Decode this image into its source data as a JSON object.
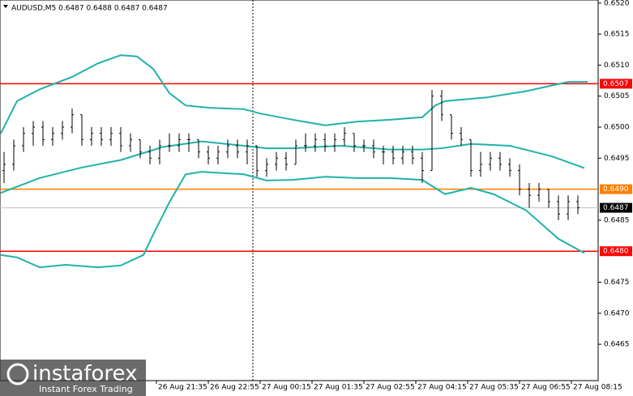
{
  "chart_data": {
    "type": "ohlc",
    "title": "AUDUSD,M5  0.6487 0.6488 0.6487 0.6487",
    "ylim": [
      0.64594,
      0.65205
    ],
    "xlim": [
      0,
      184
    ],
    "bar_color": "#000000",
    "yticks": [
      {
        "value": 0.652,
        "label": "0.6520"
      },
      {
        "value": 0.6515,
        "label": "0.6515"
      },
      {
        "value": 0.651,
        "label": "0.6510"
      },
      {
        "value": 0.6505,
        "label": "0.6505"
      },
      {
        "value": 0.65,
        "label": "0.6500"
      },
      {
        "value": 0.6495,
        "label": "0.6495"
      },
      {
        "value": 0.6485,
        "label": "0.6485"
      },
      {
        "value": 0.6475,
        "label": "0.6475"
      },
      {
        "value": 0.647,
        "label": "0.6470"
      },
      {
        "value": 0.6465,
        "label": "0.6465"
      }
    ],
    "xticks": [
      {
        "value": 48,
        "label": "26 Aug 21:35"
      },
      {
        "value": 64,
        "label": "26 Aug 22:55"
      },
      {
        "value": 80,
        "label": "27 Aug 00:15"
      },
      {
        "value": 96,
        "label": "27 Aug 01:35"
      },
      {
        "value": 112,
        "label": "27 Aug 02:55"
      },
      {
        "value": 128,
        "label": "27 Aug 04:15"
      },
      {
        "value": 144,
        "label": "27 Aug 05:35"
      },
      {
        "value": 160,
        "label": "27 Aug 06:55"
      },
      {
        "value": 176,
        "label": "27 Aug 08:15"
      }
    ],
    "x": [
      1,
      4,
      7,
      10,
      13,
      16,
      19,
      22,
      25,
      28,
      31,
      34,
      37,
      40,
      43,
      46,
      49,
      52,
      55,
      58,
      61,
      64,
      67,
      70,
      73,
      76,
      79,
      82,
      85,
      88,
      91,
      94,
      97,
      100,
      103,
      106,
      109,
      112,
      115,
      118,
      121,
      124,
      127,
      130,
      133,
      136,
      139,
      142,
      145,
      148,
      151,
      154,
      157,
      160,
      163,
      166,
      169,
      172,
      175,
      178
    ],
    "ohlc": [
      [
        0.6493,
        0.6496,
        0.6491,
        0.6494
      ],
      [
        0.6494,
        0.6498,
        0.6493,
        0.6497
      ],
      [
        0.6497,
        0.65,
        0.6496,
        0.6499
      ],
      [
        0.6499,
        0.6501,
        0.6497,
        0.65
      ],
      [
        0.65,
        0.6501,
        0.6497,
        0.6498
      ],
      [
        0.6498,
        0.65,
        0.6497,
        0.6499
      ],
      [
        0.6499,
        0.6501,
        0.6498,
        0.65
      ],
      [
        0.65,
        0.6503,
        0.6499,
        0.6502
      ],
      [
        0.6502,
        0.6502,
        0.6497,
        0.6498
      ],
      [
        0.6498,
        0.65,
        0.6497,
        0.6499
      ],
      [
        0.6499,
        0.65,
        0.6497,
        0.6498
      ],
      [
        0.6498,
        0.65,
        0.6497,
        0.6499
      ],
      [
        0.6499,
        0.65,
        0.6496,
        0.6497
      ],
      [
        0.6497,
        0.6499,
        0.6496,
        0.6498
      ],
      [
        0.6498,
        0.6498,
        0.6495,
        0.6496
      ],
      [
        0.6496,
        0.6497,
        0.6494,
        0.6495
      ],
      [
        0.6495,
        0.6498,
        0.6494,
        0.6497
      ],
      [
        0.6497,
        0.6499,
        0.6496,
        0.6497
      ],
      [
        0.6497,
        0.6499,
        0.6496,
        0.6498
      ],
      [
        0.6498,
        0.6499,
        0.6496,
        0.6498
      ],
      [
        0.6498,
        0.6498,
        0.6495,
        0.6496
      ],
      [
        0.6496,
        0.6497,
        0.6494,
        0.6495
      ],
      [
        0.6495,
        0.6497,
        0.6494,
        0.6496
      ],
      [
        0.6496,
        0.6498,
        0.6495,
        0.6497
      ],
      [
        0.6497,
        0.6498,
        0.6495,
        0.6496
      ],
      [
        0.6496,
        0.6498,
        0.6494,
        0.6497
      ],
      [
        0.6497,
        0.6497,
        0.6492,
        0.6493
      ],
      [
        0.6493,
        0.6495,
        0.6492,
        0.6494
      ],
      [
        0.6494,
        0.6496,
        0.6493,
        0.6495
      ],
      [
        0.6495,
        0.6496,
        0.6493,
        0.6494
      ],
      [
        0.6494,
        0.6498,
        0.6494,
        0.6497
      ],
      [
        0.6497,
        0.6499,
        0.6496,
        0.6497
      ],
      [
        0.6497,
        0.6499,
        0.6496,
        0.6498
      ],
      [
        0.6498,
        0.6499,
        0.6496,
        0.6497
      ],
      [
        0.6497,
        0.6499,
        0.6496,
        0.6498
      ],
      [
        0.6498,
        0.65,
        0.6497,
        0.6499
      ],
      [
        0.6499,
        0.6499,
        0.6496,
        0.6497
      ],
      [
        0.6497,
        0.6498,
        0.6496,
        0.6497
      ],
      [
        0.6497,
        0.6498,
        0.6495,
        0.6496
      ],
      [
        0.6496,
        0.6497,
        0.6494,
        0.6496
      ],
      [
        0.6496,
        0.6497,
        0.6494,
        0.6495
      ],
      [
        0.6495,
        0.6497,
        0.6494,
        0.6496
      ],
      [
        0.6496,
        0.6497,
        0.6494,
        0.6495
      ],
      [
        0.6495,
        0.6496,
        0.6491,
        0.6493
      ],
      [
        0.6493,
        0.6506,
        0.6493,
        0.6505
      ],
      [
        0.6505,
        0.6506,
        0.6501,
        0.6502
      ],
      [
        0.6502,
        0.6502,
        0.6498,
        0.6499
      ],
      [
        0.6499,
        0.65,
        0.6497,
        0.6498
      ],
      [
        0.6498,
        0.6498,
        0.6492,
        0.6493
      ],
      [
        0.6493,
        0.6496,
        0.6492,
        0.6494
      ],
      [
        0.6494,
        0.6496,
        0.6493,
        0.6495
      ],
      [
        0.6495,
        0.6496,
        0.6493,
        0.6494
      ],
      [
        0.6494,
        0.6495,
        0.6492,
        0.6493
      ],
      [
        0.6493,
        0.6494,
        0.6489,
        0.649
      ],
      [
        0.649,
        0.6491,
        0.6487,
        0.6489
      ],
      [
        0.6489,
        0.6491,
        0.6488,
        0.649
      ],
      [
        0.649,
        0.649,
        0.6487,
        0.6488
      ],
      [
        0.6488,
        0.6489,
        0.6485,
        0.6486
      ],
      [
        0.6486,
        0.6489,
        0.6485,
        0.6488
      ],
      [
        0.6488,
        0.6489,
        0.6486,
        0.6487
      ]
    ],
    "bands": [
      {
        "color": "#20b2aa",
        "x": [
          0,
          5,
          12,
          22,
          30,
          37,
          42,
          47,
          52,
          57,
          65,
          75,
          80,
          90,
          100,
          110,
          120,
          130,
          134,
          137,
          150,
          162,
          175,
          181
        ],
        "values": [
          0.6499,
          0.65042,
          0.65061,
          0.65081,
          0.65103,
          0.65116,
          0.65114,
          0.65094,
          0.65055,
          0.65035,
          0.65031,
          0.65029,
          0.65022,
          0.65012,
          0.65003,
          0.65009,
          0.65012,
          0.65016,
          0.65035,
          0.65042,
          0.65048,
          0.65058,
          0.65073,
          0.65073
        ]
      },
      {
        "color": "#20b2aa",
        "x": [
          0,
          12,
          25,
          37,
          50,
          62,
          75,
          82,
          90,
          105,
          120,
          130,
          136,
          145,
          157,
          170,
          180
        ],
        "values": [
          0.64894,
          0.64918,
          0.64935,
          0.64947,
          0.64968,
          0.64977,
          0.6497,
          0.64966,
          0.64966,
          0.6497,
          0.64964,
          0.64964,
          0.64966,
          0.64973,
          0.6497,
          0.64953,
          0.64934
        ]
      },
      {
        "color": "#20b2aa",
        "x": [
          0,
          5,
          12,
          20,
          30,
          37,
          44,
          47,
          52,
          57,
          62,
          75,
          82,
          90,
          100,
          110,
          120,
          130,
          137,
          145,
          152,
          162,
          172,
          180
        ],
        "values": [
          0.64794,
          0.6479,
          0.64774,
          0.64778,
          0.64774,
          0.64777,
          0.64794,
          0.64827,
          0.64879,
          0.64924,
          0.64928,
          0.64924,
          0.64914,
          0.64915,
          0.6492,
          0.64918,
          0.64918,
          0.64915,
          0.64892,
          0.64902,
          0.64892,
          0.64866,
          0.6482,
          0.64797
        ]
      }
    ],
    "levels": [
      {
        "value": 0.6507,
        "label": "0.6507",
        "color": "#ff0000"
      },
      {
        "value": 0.649,
        "label": "0.6490",
        "color": "#ff7f00"
      },
      {
        "value": 0.648,
        "label": "0.6480",
        "color": "#ff0000"
      }
    ],
    "current_price": {
      "value": 0.6487,
      "label": "0.6487",
      "color": "#c0c0c0"
    },
    "watermark": {
      "brand": "instaforex",
      "tagline": "Instant Forex Trading"
    }
  }
}
